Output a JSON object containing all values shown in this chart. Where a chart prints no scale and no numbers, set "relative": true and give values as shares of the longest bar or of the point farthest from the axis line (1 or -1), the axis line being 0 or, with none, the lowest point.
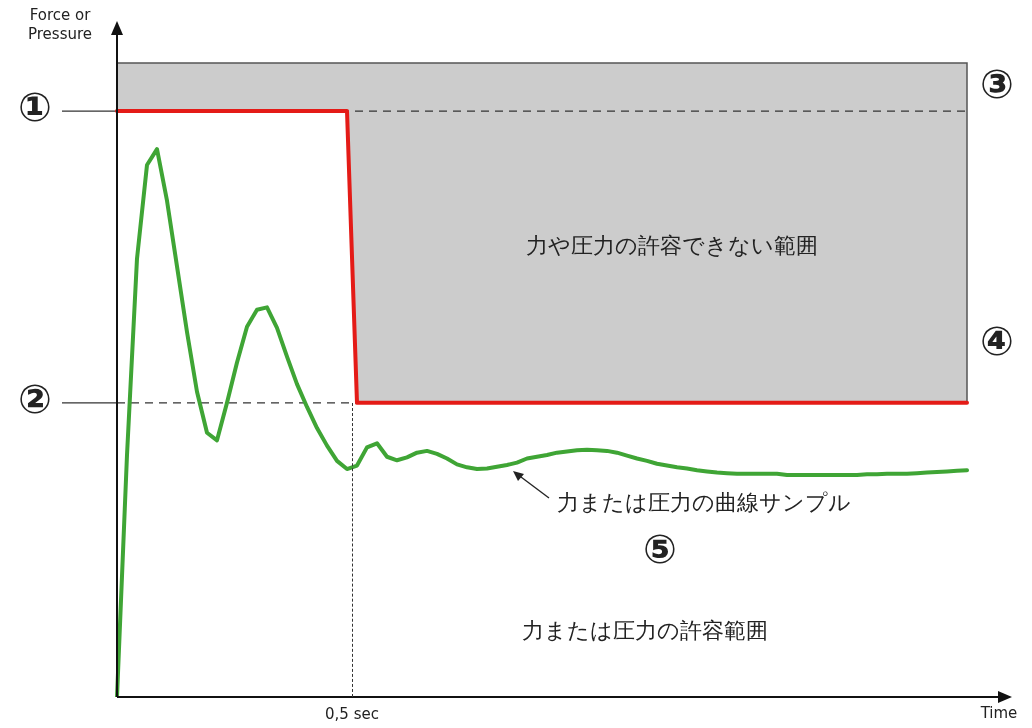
{
  "chart_data": {
    "type": "line",
    "relative": true,
    "xlabel": "Time",
    "ylabel": "Force or Pressure",
    "legend": false,
    "marker": "none",
    "categories": [
      null,
      null,
      null,
      null,
      null,
      null,
      null,
      null,
      null,
      null,
      null,
      null,
      null,
      null,
      null,
      null,
      null,
      null,
      null,
      null,
      null,
      null,
      null,
      null,
      null,
      null,
      null,
      null,
      null,
      null,
      null,
      null,
      null,
      null,
      null,
      null,
      null,
      null,
      null,
      null,
      null,
      null,
      null,
      null,
      null,
      null,
      null,
      null,
      null,
      null,
      null,
      null,
      null,
      null,
      null,
      null,
      null,
      null,
      null,
      null,
      null,
      null,
      null,
      null,
      null,
      null,
      null,
      null,
      null,
      null,
      null,
      null,
      null,
      null,
      null,
      null,
      null,
      null,
      null,
      null,
      null,
      null,
      null,
      null,
      null,
      null
    ],
    "series": [
      {
        "type": "line",
        "color": "#e41b17",
        "values": [
          1,
          1,
          1,
          1,
          1,
          1,
          1,
          1,
          1,
          1,
          1,
          1,
          1,
          1,
          1,
          1,
          1,
          1,
          1,
          1,
          1,
          1,
          1,
          1,
          0.502,
          0.502,
          0.502,
          0.502,
          0.502,
          0.502,
          0.502,
          0.502,
          0.502,
          0.502,
          0.502,
          0.502,
          0.502,
          0.502,
          0.502,
          0.502,
          0.502,
          0.502,
          0.502,
          0.502,
          0.502,
          0.502,
          0.502,
          0.502,
          0.502,
          0.502,
          0.502,
          0.502,
          0.502,
          0.502,
          0.502,
          0.502,
          0.502,
          0.502,
          0.502,
          0.502,
          0.502,
          0.502,
          0.502,
          0.502,
          0.502,
          0.502,
          0.502,
          0.502,
          0.502,
          0.502,
          0.502,
          0.502,
          0.502,
          0.502,
          0.502,
          0.502,
          0.502,
          0.502,
          0.502,
          0.502,
          0.502,
          0.502,
          0.502,
          0.502,
          0.502,
          0.502
        ],
        "lower": [
          1,
          1,
          1,
          1,
          1,
          1,
          1,
          1,
          1,
          1,
          1,
          1,
          1,
          1,
          1,
          1,
          1,
          1,
          1,
          1,
          1,
          1,
          1,
          1,
          0.502,
          0.502,
          0.502,
          0.502,
          0.502,
          0.502,
          0.502,
          0.502,
          0.502,
          0.502,
          0.502,
          0.502,
          0.502,
          0.502,
          0.502,
          0.502,
          0.502,
          0.502,
          0.502,
          0.502,
          0.502,
          0.502,
          0.502,
          0.502,
          0.502,
          0.502,
          0.502,
          0.502,
          0.502,
          0.502,
          0.502,
          0.502,
          0.502,
          0.502,
          0.502,
          0.502,
          0.502,
          0.502,
          0.502,
          0.502,
          0.502,
          0.502,
          0.502,
          0.502,
          0.502,
          0.502,
          0.502,
          0.502,
          0.502,
          0.502,
          0.502,
          0.502,
          0.502,
          0.502,
          0.502,
          0.502,
          0.502,
          0.502,
          0.502,
          0.502,
          0.502,
          0.502
        ],
        "upper": [
          1.082,
          1.082,
          1.082,
          1.082,
          1.082,
          1.082,
          1.082,
          1.082,
          1.082,
          1.082,
          1.082,
          1.082,
          1.082,
          1.082,
          1.082,
          1.082,
          1.082,
          1.082,
          1.082,
          1.082,
          1.082,
          1.082,
          1.082,
          1.082,
          1.082,
          1.082,
          1.082,
          1.082,
          1.082,
          1.082,
          1.082,
          1.082,
          1.082,
          1.082,
          1.082,
          1.082,
          1.082,
          1.082,
          1.082,
          1.082,
          1.082,
          1.082,
          1.082,
          1.082,
          1.082,
          1.082,
          1.082,
          1.082,
          1.082,
          1.082,
          1.082,
          1.082,
          1.082,
          1.082,
          1.082,
          1.082,
          1.082,
          1.082,
          1.082,
          1.082,
          1.082,
          1.082,
          1.082,
          1.082,
          1.082,
          1.082,
          1.082,
          1.082,
          1.082,
          1.082,
          1.082,
          1.082,
          1.082,
          1.082,
          1.082,
          1.082,
          1.082,
          1.082,
          1.082,
          1.082,
          1.082,
          1.082,
          1.082,
          1.082,
          1.082,
          1.082
        ]
      },
      {
        "type": "line",
        "color": "#3fa535",
        "values": [
          0,
          0.413,
          0.748,
          0.908,
          0.935,
          0.847,
          0.735,
          0.623,
          0.521,
          0.451,
          0.438,
          0.502,
          0.571,
          0.632,
          0.661,
          0.665,
          0.63,
          0.581,
          0.534,
          0.495,
          0.459,
          0.429,
          0.403,
          0.389,
          0.395,
          0.426,
          0.433,
          0.41,
          0.404,
          0.409,
          0.417,
          0.42,
          0.415,
          0.407,
          0.397,
          0.392,
          0.389,
          0.39,
          0.393,
          0.396,
          0.4,
          0.407,
          0.41,
          0.413,
          0.417,
          0.419,
          0.421,
          0.422,
          0.421,
          0.42,
          0.417,
          0.412,
          0.407,
          0.403,
          0.398,
          0.395,
          0.392,
          0.39,
          0.387,
          0.385,
          0.383,
          0.382,
          0.381,
          0.381,
          0.381,
          0.381,
          0.381,
          0.379,
          0.379,
          0.379,
          0.379,
          0.379,
          0.379,
          0.379,
          0.379,
          0.38,
          0.38,
          0.381,
          0.381,
          0.381,
          0.382,
          0.383,
          0.384,
          0.385,
          0.386,
          0.387
        ]
      }
    ],
    "ref_lines": [
      {
        "axis": "y",
        "value": 1,
        "label": "①",
        "line_style": "dashed"
      },
      {
        "axis": "y",
        "value": 0.502,
        "label": "②",
        "line_style": "dashed"
      }
    ],
    "annotations": [
      "0,5 sec",
      "③",
      "力や圧力の許容できない範囲",
      "④",
      "力または圧力の曲線サンプル",
      "⑤",
      "力または圧力の許容範囲"
    ]
  }
}
